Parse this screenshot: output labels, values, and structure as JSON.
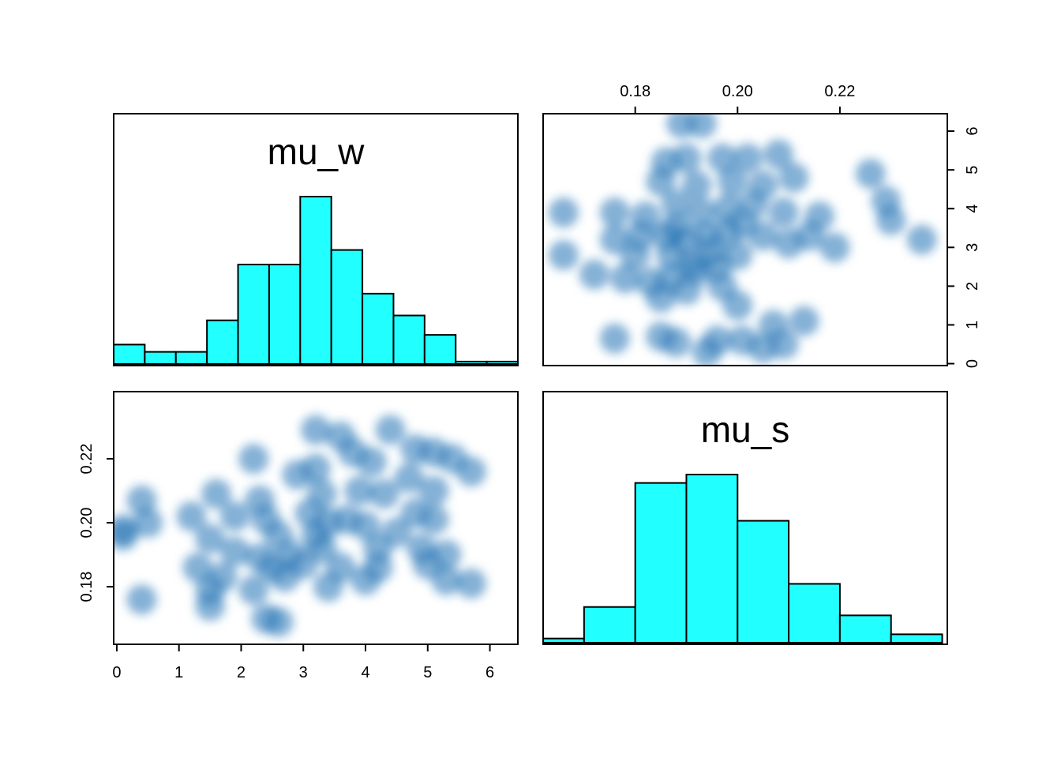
{
  "colors": {
    "hist_fill": "#22ffff",
    "hist_stroke": "#000000",
    "density_dark": "#08306b",
    "density_mid": "#2171b5",
    "density_light": "#c6dbef",
    "background": "#ffffff"
  },
  "chart_data": [
    {
      "panel": "top-left",
      "type": "bar",
      "subtype": "histogram",
      "title": "mu_w",
      "bin_edges": [
        0,
        0.5,
        1,
        1.5,
        2,
        2.5,
        3,
        3.5,
        4,
        4.5,
        5,
        5.5,
        6,
        6.5
      ],
      "values": [
        8,
        5,
        5,
        18,
        41,
        41,
        69,
        47,
        29,
        20,
        12,
        1,
        1
      ],
      "xlim": [
        0,
        6.5
      ],
      "show_axes": false
    },
    {
      "panel": "top-right",
      "type": "scatter",
      "subtype": "smoothed density scatter",
      "x_variable": "mu_s",
      "y_variable": "mu_w",
      "xlim": [
        0.162,
        0.241
      ],
      "ylim": [
        -0.05,
        6.45
      ],
      "x_ticks": [
        "0.18",
        "0.20",
        "0.22"
      ],
      "x_tick_values": [
        0.18,
        0.2,
        0.22
      ],
      "x_axis_position": "top",
      "y_ticks": [
        "0",
        "1",
        "2",
        "3",
        "4",
        "5",
        "6"
      ],
      "y_tick_values": [
        0,
        1,
        2,
        3,
        4,
        5,
        6
      ],
      "y_axis_position": "right",
      "points": [
        [
          0.189,
          6.2
        ],
        [
          0.193,
          6.2
        ],
        [
          0.186,
          5.2
        ],
        [
          0.19,
          5.3
        ],
        [
          0.197,
          5.3
        ],
        [
          0.202,
          5.3
        ],
        [
          0.208,
          5.4
        ],
        [
          0.226,
          4.9
        ],
        [
          0.185,
          4.7
        ],
        [
          0.192,
          4.6
        ],
        [
          0.199,
          4.7
        ],
        [
          0.205,
          4.6
        ],
        [
          0.211,
          4.8
        ],
        [
          0.166,
          3.9
        ],
        [
          0.176,
          3.9
        ],
        [
          0.182,
          3.8
        ],
        [
          0.188,
          4.1
        ],
        [
          0.193,
          3.9
        ],
        [
          0.198,
          4.0
        ],
        [
          0.203,
          4.1
        ],
        [
          0.209,
          3.9
        ],
        [
          0.216,
          3.8
        ],
        [
          0.229,
          4.2
        ],
        [
          0.176,
          3.2
        ],
        [
          0.181,
          3.3
        ],
        [
          0.186,
          3.3
        ],
        [
          0.188,
          3.5
        ],
        [
          0.19,
          3.2
        ],
        [
          0.194,
          3.3
        ],
        [
          0.198,
          3.4
        ],
        [
          0.201,
          3.6
        ],
        [
          0.205,
          3.3
        ],
        [
          0.21,
          3.1
        ],
        [
          0.214,
          3.3
        ],
        [
          0.219,
          3.0
        ],
        [
          0.23,
          3.7
        ],
        [
          0.236,
          3.2
        ],
        [
          0.166,
          2.8
        ],
        [
          0.18,
          2.8
        ],
        [
          0.187,
          2.8
        ],
        [
          0.191,
          2.6
        ],
        [
          0.195,
          2.9
        ],
        [
          0.2,
          2.8
        ],
        [
          0.172,
          2.3
        ],
        [
          0.178,
          2.2
        ],
        [
          0.183,
          2.1
        ],
        [
          0.187,
          2.2
        ],
        [
          0.192,
          2.4
        ],
        [
          0.196,
          2.5
        ],
        [
          0.19,
          1.9
        ],
        [
          0.185,
          1.7
        ],
        [
          0.197,
          2.0
        ],
        [
          0.2,
          1.5
        ],
        [
          0.207,
          1.0
        ],
        [
          0.213,
          1.1
        ],
        [
          0.176,
          0.65
        ],
        [
          0.185,
          0.7
        ],
        [
          0.188,
          0.55
        ],
        [
          0.196,
          0.6
        ],
        [
          0.201,
          0.6
        ],
        [
          0.205,
          0.4
        ],
        [
          0.194,
          0.3
        ],
        [
          0.209,
          0.5
        ]
      ]
    },
    {
      "panel": "bottom-left",
      "type": "scatter",
      "subtype": "smoothed density scatter",
      "x_variable": "mu_w",
      "y_variable": "mu_s",
      "xlim": [
        -0.05,
        6.45
      ],
      "ylim": [
        0.162,
        0.241
      ],
      "x_ticks": [
        "0",
        "1",
        "2",
        "3",
        "4",
        "5",
        "6"
      ],
      "x_tick_values": [
        0,
        1,
        2,
        3,
        4,
        5,
        6
      ],
      "x_axis_position": "bottom",
      "y_ticks": [
        "0.18",
        "0.20",
        "0.22"
      ],
      "y_tick_values": [
        0.18,
        0.2,
        0.22
      ],
      "y_axis_position": "left",
      "points": [
        [
          0.1,
          0.198
        ],
        [
          0.4,
          0.207
        ],
        [
          0.5,
          0.2
        ],
        [
          0.4,
          0.176
        ],
        [
          0.1,
          0.196
        ],
        [
          1.2,
          0.202
        ],
        [
          1.6,
          0.209
        ],
        [
          1.9,
          0.202
        ],
        [
          1.5,
          0.195
        ],
        [
          1.9,
          0.191
        ],
        [
          1.3,
          0.186
        ],
        [
          1.7,
          0.183
        ],
        [
          1.5,
          0.179
        ],
        [
          1.5,
          0.174
        ],
        [
          2.2,
          0.22
        ],
        [
          2.3,
          0.207
        ],
        [
          2.4,
          0.201
        ],
        [
          2.6,
          0.196
        ],
        [
          2.3,
          0.189
        ],
        [
          2.5,
          0.186
        ],
        [
          2.8,
          0.19
        ],
        [
          2.7,
          0.183
        ],
        [
          2.2,
          0.179
        ],
        [
          2.4,
          0.17
        ],
        [
          2.6,
          0.169
        ],
        [
          2.9,
          0.215
        ],
        [
          3.2,
          0.217
        ],
        [
          3.3,
          0.209
        ],
        [
          3.1,
          0.203
        ],
        [
          3.4,
          0.2
        ],
        [
          3.7,
          0.201
        ],
        [
          3.3,
          0.192
        ],
        [
          3.0,
          0.187
        ],
        [
          3.6,
          0.186
        ],
        [
          3.4,
          0.18
        ],
        [
          3.2,
          0.196
        ],
        [
          3.2,
          0.229
        ],
        [
          3.6,
          0.227
        ],
        [
          3.8,
          0.222
        ],
        [
          4.1,
          0.219
        ],
        [
          4.4,
          0.229
        ],
        [
          3.9,
          0.21
        ],
        [
          4.3,
          0.209
        ],
        [
          4.0,
          0.199
        ],
        [
          4.2,
          0.192
        ],
        [
          4.5,
          0.197
        ],
        [
          4.2,
          0.186
        ],
        [
          4.0,
          0.182
        ],
        [
          4.8,
          0.223
        ],
        [
          5.1,
          0.222
        ],
        [
          4.7,
          0.214
        ],
        [
          5.1,
          0.21
        ],
        [
          4.8,
          0.203
        ],
        [
          5.1,
          0.201
        ],
        [
          4.9,
          0.192
        ],
        [
          5.0,
          0.187
        ],
        [
          5.3,
          0.182
        ],
        [
          5.7,
          0.181
        ],
        [
          5.4,
          0.22
        ],
        [
          5.7,
          0.216
        ],
        [
          5.3,
          0.19
        ]
      ]
    },
    {
      "panel": "bottom-right",
      "type": "bar",
      "subtype": "histogram",
      "title": "mu_s",
      "bin_edges": [
        0.16,
        0.17,
        0.18,
        0.19,
        0.2,
        0.21,
        0.22,
        0.23,
        0.24
      ],
      "values": [
        2,
        17,
        76,
        80,
        58,
        28,
        13,
        4
      ],
      "xlim": [
        0.162,
        0.241
      ],
      "show_axes": false
    }
  ]
}
